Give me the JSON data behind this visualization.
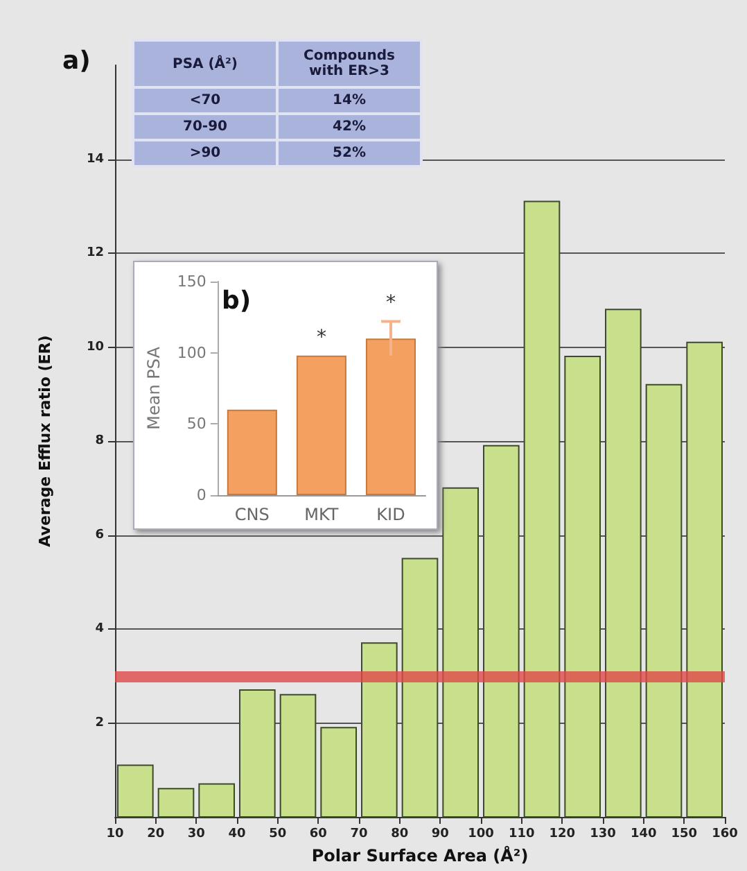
{
  "chart_data": [
    {
      "type": "histogram",
      "title": "a)",
      "xlabel": "Polar Surface Area (Å²)",
      "ylabel": "Average Efflux ratio (ER)",
      "bins": [
        10,
        20,
        30,
        40,
        50,
        60,
        70,
        80,
        90,
        100,
        110,
        120,
        130,
        140,
        150,
        160
      ],
      "values": [
        1.1,
        0.6,
        0.7,
        2.7,
        2.6,
        1.9,
        3.7,
        5.5,
        7.0,
        7.9,
        13.1,
        9.8,
        10.8,
        9.2,
        10.1
      ],
      "color": "#c8e08c",
      "xlim": [
        10,
        160
      ],
      "xticks": [
        10,
        20,
        30,
        40,
        50,
        60,
        70,
        80,
        90,
        100,
        110,
        120,
        130,
        140,
        150,
        160
      ],
      "ylim": [
        0,
        16
      ],
      "yticks": [
        2,
        4,
        6,
        8,
        10,
        12,
        14
      ],
      "grid": "y",
      "ref_lines": [
        {
          "axis": "y",
          "value": 3,
          "color": "#e04848"
        }
      ]
    },
    {
      "type": "other",
      "color": "#a9b3dc",
      "annotations": [
        "PSA (Å²)",
        "Compounds with ER>3",
        "<70",
        "14%",
        "70-90",
        "42%",
        ">90",
        "52%"
      ]
    },
    {
      "type": "bar",
      "title": "b)",
      "ylabel": "Mean PSA",
      "categories": [
        "CNS",
        "MKT",
        "KID"
      ],
      "values": [
        60,
        98,
        110
      ],
      "errors": [
        null,
        null,
        12
      ],
      "color": "#f4a060",
      "ylim": [
        0,
        150
      ],
      "yticks": [
        0,
        50,
        100,
        150
      ],
      "annotations": [
        "*",
        "*"
      ]
    }
  ]
}
